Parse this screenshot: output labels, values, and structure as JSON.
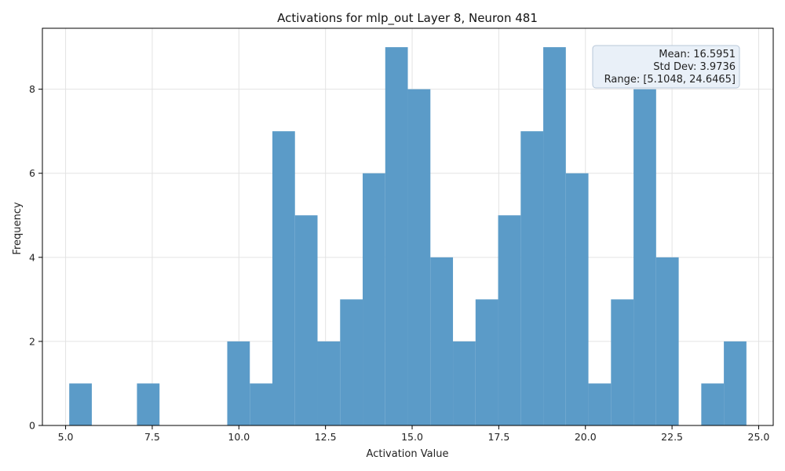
{
  "chart_data": {
    "type": "bar",
    "title": "Activations for mlp_out Layer 8, Neuron 481",
    "xlabel": "Activation Value",
    "ylabel": "Frequency",
    "xlim": [
      4.33,
      25.42
    ],
    "ylim": [
      0,
      9.45
    ],
    "bin_start": 5.1048,
    "bin_width": 0.65139,
    "values": [
      1,
      0,
      0,
      1,
      0,
      0,
      0,
      2,
      1,
      7,
      5,
      2,
      3,
      6,
      9,
      8,
      4,
      2,
      3,
      5,
      7,
      9,
      6,
      1,
      3,
      8,
      4,
      0,
      1,
      2
    ],
    "xticks": [
      5.0,
      7.5,
      10.0,
      12.5,
      15.0,
      17.5,
      20.0,
      22.5,
      25.0
    ],
    "xtick_labels": [
      "5.0",
      "7.5",
      "10.0",
      "12.5",
      "15.0",
      "17.5",
      "20.0",
      "22.5",
      "25.0"
    ],
    "yticks": [
      0,
      2,
      4,
      6,
      8
    ],
    "ytick_labels": [
      "0",
      "2",
      "4",
      "6",
      "8"
    ],
    "grid": true,
    "bar_color": "#5b9bc8",
    "stats_box": {
      "placement": "top-right",
      "lines": [
        "Mean: 16.5951",
        "Std Dev: 3.9736",
        "Range: [5.1048, 24.6465]"
      ],
      "background": "#e9f0f8"
    }
  }
}
